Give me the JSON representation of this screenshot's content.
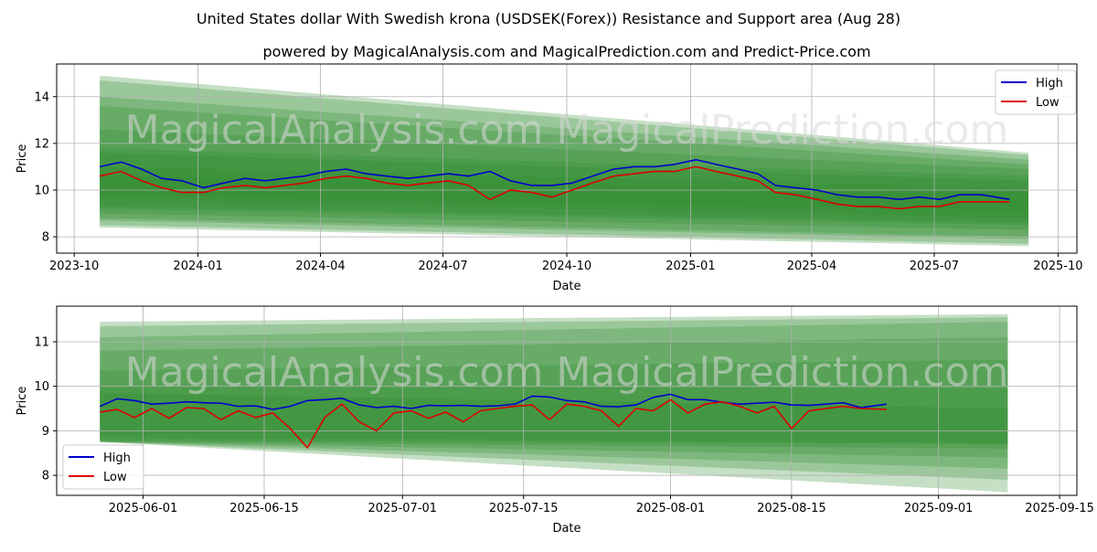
{
  "title": "United States dollar With Swedish krona (USDSEK(Forex)) Resistance and Support area (Aug 28)",
  "subtitle": "powered by MagicalAnalysis.com and MagicalPrediction.com and Predict-Price.com",
  "watermark": "MagicalAnalysis.com   MagicalPrediction.com",
  "colors": {
    "high": "#0000cc",
    "low": "#dd0000",
    "band": "#2e8b2e"
  },
  "chart_data": [
    {
      "type": "line",
      "xlabel": "Date",
      "ylabel": "Price",
      "x_ticks": [
        "2023-10",
        "2024-01",
        "2024-04",
        "2024-07",
        "2024-10",
        "2025-01",
        "2025-04",
        "2025-07",
        "2025-10"
      ],
      "y_ticks": [
        "8",
        "10",
        "12",
        "14"
      ],
      "xlim": [
        "2023-09-18",
        "2025-10-15"
      ],
      "ylim": [
        7.3,
        15.4
      ],
      "legend_position": "top-right",
      "grid": true,
      "series": [
        {
          "name": "High",
          "x": [
            "2023-10-20",
            "2023-11-05",
            "2023-11-20",
            "2023-12-05",
            "2023-12-20",
            "2024-01-05",
            "2024-01-20",
            "2024-02-05",
            "2024-02-20",
            "2024-03-05",
            "2024-03-20",
            "2024-04-05",
            "2024-04-20",
            "2024-05-05",
            "2024-05-20",
            "2024-06-05",
            "2024-06-20",
            "2024-07-05",
            "2024-07-20",
            "2024-08-05",
            "2024-08-20",
            "2024-09-05",
            "2024-09-20",
            "2024-10-05",
            "2024-10-20",
            "2024-11-05",
            "2024-11-20",
            "2024-12-05",
            "2024-12-20",
            "2025-01-05",
            "2025-01-20",
            "2025-02-05",
            "2025-02-20",
            "2025-03-05",
            "2025-03-20",
            "2025-04-05",
            "2025-04-20",
            "2025-05-05",
            "2025-05-20",
            "2025-06-05",
            "2025-06-20",
            "2025-07-05",
            "2025-07-20",
            "2025-08-05",
            "2025-08-26"
          ],
          "values": [
            11.0,
            11.2,
            10.9,
            10.5,
            10.4,
            10.1,
            10.3,
            10.5,
            10.4,
            10.5,
            10.6,
            10.8,
            10.9,
            10.7,
            10.6,
            10.5,
            10.6,
            10.7,
            10.6,
            10.8,
            10.4,
            10.2,
            10.2,
            10.3,
            10.6,
            10.9,
            11.0,
            11.0,
            11.1,
            11.3,
            11.1,
            10.9,
            10.7,
            10.2,
            10.1,
            10.0,
            9.8,
            9.7,
            9.7,
            9.6,
            9.7,
            9.6,
            9.8,
            9.8,
            9.6
          ]
        },
        {
          "name": "Low",
          "x": [
            "2023-10-20",
            "2023-11-05",
            "2023-11-20",
            "2023-12-05",
            "2023-12-20",
            "2024-01-05",
            "2024-01-20",
            "2024-02-05",
            "2024-02-20",
            "2024-03-05",
            "2024-03-20",
            "2024-04-05",
            "2024-04-20",
            "2024-05-05",
            "2024-05-20",
            "2024-06-05",
            "2024-06-20",
            "2024-07-05",
            "2024-07-20",
            "2024-08-05",
            "2024-08-20",
            "2024-09-05",
            "2024-09-20",
            "2024-10-05",
            "2024-10-20",
            "2024-11-05",
            "2024-11-20",
            "2024-12-05",
            "2024-12-20",
            "2025-01-05",
            "2025-01-20",
            "2025-02-05",
            "2025-02-20",
            "2025-03-05",
            "2025-03-20",
            "2025-04-05",
            "2025-04-20",
            "2025-05-05",
            "2025-05-20",
            "2025-06-05",
            "2025-06-20",
            "2025-07-05",
            "2025-07-20",
            "2025-08-05",
            "2025-08-26"
          ],
          "values": [
            10.6,
            10.8,
            10.4,
            10.1,
            9.9,
            9.9,
            10.1,
            10.2,
            10.1,
            10.2,
            10.3,
            10.5,
            10.6,
            10.5,
            10.3,
            10.2,
            10.3,
            10.4,
            10.2,
            9.6,
            10.0,
            9.9,
            9.7,
            10.0,
            10.3,
            10.6,
            10.7,
            10.8,
            10.8,
            11.0,
            10.8,
            10.6,
            10.4,
            9.9,
            9.8,
            9.6,
            9.4,
            9.3,
            9.3,
            9.2,
            9.3,
            9.3,
            9.5,
            9.5,
            9.5
          ]
        }
      ],
      "bands": [
        {
          "start": [
            14.9,
            8.4
          ],
          "end": [
            7.6,
            11.6
          ]
        },
        {
          "start": [
            14.7,
            8.5
          ],
          "end": [
            7.7,
            11.5
          ]
        },
        {
          "start": [
            14.0,
            8.7
          ],
          "end": [
            7.9,
            11.3
          ]
        },
        {
          "start": [
            13.6,
            8.8
          ],
          "end": [
            8.0,
            11.1
          ]
        },
        {
          "start": [
            12.6,
            9.0
          ],
          "end": [
            8.3,
            10.9
          ]
        },
        {
          "start": [
            11.8,
            9.2
          ],
          "end": [
            8.5,
            10.6
          ]
        },
        {
          "start": [
            11.6,
            9.3
          ],
          "end": [
            8.6,
            10.4
          ]
        },
        {
          "start": [
            11.0,
            9.6
          ],
          "end": [
            8.8,
            10.1
          ]
        },
        {
          "start": [
            10.6,
            9.8
          ],
          "end": [
            9.1,
            9.9
          ]
        }
      ]
    },
    {
      "type": "line",
      "xlabel": "Date",
      "ylabel": "Price",
      "x_ticks": [
        "2025-06-01",
        "2025-06-15",
        "2025-07-01",
        "2025-07-15",
        "2025-08-01",
        "2025-08-15",
        "2025-09-01",
        "2025-09-15"
      ],
      "y_ticks": [
        "8",
        "9",
        "10",
        "11"
      ],
      "xlim": [
        "2025-05-22",
        "2025-09-17"
      ],
      "ylim": [
        7.55,
        11.8
      ],
      "legend_position": "bottom-left",
      "grid": true,
      "series": [
        {
          "name": "High",
          "x": [
            "2025-05-27",
            "2025-05-29",
            "2025-05-31",
            "2025-06-02",
            "2025-06-04",
            "2025-06-06",
            "2025-06-08",
            "2025-06-10",
            "2025-06-12",
            "2025-06-14",
            "2025-06-16",
            "2025-06-18",
            "2025-06-20",
            "2025-06-22",
            "2025-06-24",
            "2025-06-26",
            "2025-06-28",
            "2025-06-30",
            "2025-07-02",
            "2025-07-04",
            "2025-07-06",
            "2025-07-08",
            "2025-07-10",
            "2025-07-12",
            "2025-07-14",
            "2025-07-16",
            "2025-07-18",
            "2025-07-20",
            "2025-07-22",
            "2025-07-24",
            "2025-07-26",
            "2025-07-28",
            "2025-07-30",
            "2025-08-01",
            "2025-08-03",
            "2025-08-05",
            "2025-08-07",
            "2025-08-09",
            "2025-08-11",
            "2025-08-13",
            "2025-08-15",
            "2025-08-17",
            "2025-08-19",
            "2025-08-21",
            "2025-08-23",
            "2025-08-26"
          ],
          "values": [
            9.55,
            9.72,
            9.68,
            9.6,
            9.62,
            9.65,
            9.63,
            9.62,
            9.55,
            9.56,
            9.48,
            9.55,
            9.68,
            9.7,
            9.73,
            9.58,
            9.52,
            9.55,
            9.5,
            9.57,
            9.56,
            9.57,
            9.55,
            9.56,
            9.6,
            9.78,
            9.76,
            9.68,
            9.65,
            9.55,
            9.54,
            9.58,
            9.75,
            9.82,
            9.7,
            9.7,
            9.64,
            9.6,
            9.62,
            9.64,
            9.58,
            9.57,
            9.6,
            9.63,
            9.52,
            9.6
          ]
        },
        {
          "name": "Low",
          "x": [
            "2025-05-27",
            "2025-05-29",
            "2025-05-31",
            "2025-06-02",
            "2025-06-04",
            "2025-06-06",
            "2025-06-08",
            "2025-06-10",
            "2025-06-12",
            "2025-06-14",
            "2025-06-16",
            "2025-06-18",
            "2025-06-20",
            "2025-06-22",
            "2025-06-24",
            "2025-06-26",
            "2025-06-28",
            "2025-06-30",
            "2025-07-02",
            "2025-07-04",
            "2025-07-06",
            "2025-07-08",
            "2025-07-10",
            "2025-07-12",
            "2025-07-14",
            "2025-07-16",
            "2025-07-18",
            "2025-07-20",
            "2025-07-22",
            "2025-07-24",
            "2025-07-26",
            "2025-07-28",
            "2025-07-30",
            "2025-08-01",
            "2025-08-03",
            "2025-08-05",
            "2025-08-07",
            "2025-08-09",
            "2025-08-11",
            "2025-08-13",
            "2025-08-15",
            "2025-08-17",
            "2025-08-19",
            "2025-08-21",
            "2025-08-23",
            "2025-08-26"
          ],
          "values": [
            9.42,
            9.48,
            9.3,
            9.5,
            9.28,
            9.52,
            9.5,
            9.25,
            9.45,
            9.3,
            9.4,
            9.05,
            8.62,
            9.3,
            9.6,
            9.2,
            9.0,
            9.4,
            9.45,
            9.28,
            9.42,
            9.2,
            9.45,
            9.5,
            9.55,
            9.58,
            9.25,
            9.6,
            9.55,
            9.45,
            9.1,
            9.5,
            9.45,
            9.7,
            9.4,
            9.6,
            9.65,
            9.55,
            9.4,
            9.55,
            9.05,
            9.45,
            9.5,
            9.55,
            9.5,
            9.48
          ]
        }
      ],
      "bands": [
        {
          "start": [
            11.45,
            8.75
          ],
          "end": [
            7.62,
            11.62
          ]
        },
        {
          "start": [
            11.35,
            8.75
          ],
          "end": [
            7.9,
            11.55
          ]
        },
        {
          "start": [
            11.1,
            8.75
          ],
          "end": [
            8.15,
            11.45
          ]
        },
        {
          "start": [
            10.8,
            8.75
          ],
          "end": [
            8.4,
            11.1
          ]
        },
        {
          "start": [
            10.35,
            8.75
          ],
          "end": [
            8.6,
            10.6
          ]
        },
        {
          "start": [
            10.0,
            8.78
          ],
          "end": [
            8.7,
            9.95
          ]
        },
        {
          "start": [
            9.85,
            8.85
          ],
          "end": [
            8.72,
            9.5
          ]
        }
      ]
    }
  ]
}
